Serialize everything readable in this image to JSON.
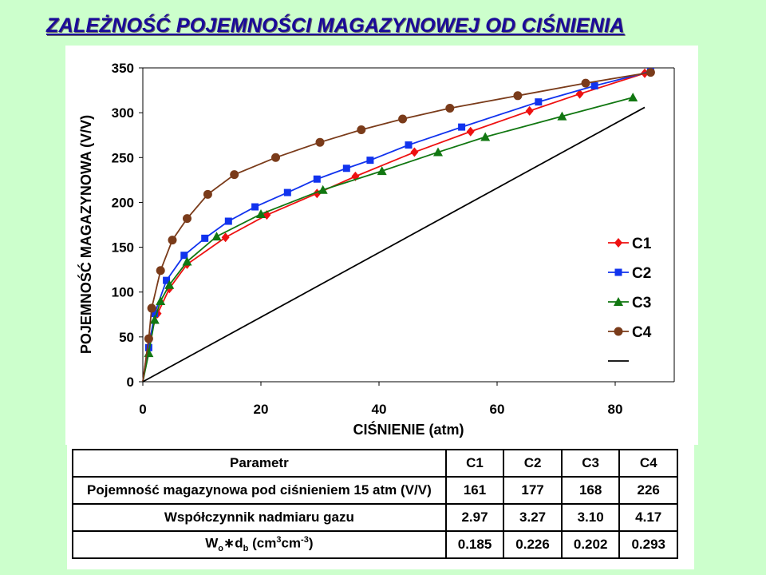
{
  "title": "ZALEŻNOŚĆ POJEMNOŚCI MAGAZYNOWEJ OD CIŚNIENIA",
  "chart_data": {
    "type": "line",
    "xlabel": "CIŚNIENIE (atm)",
    "ylabel": "POJEMNOŚĆ MAGAZYNOWA (V/V)",
    "xlim": [
      0,
      90
    ],
    "ylim": [
      0,
      350
    ],
    "xticks": [
      "0",
      "20",
      "40",
      "60",
      "80"
    ],
    "yticks": [
      "0",
      "50",
      "100",
      "150",
      "200",
      "250",
      "300",
      "350"
    ],
    "grid": false,
    "legend_position": "right",
    "series": [
      {
        "name": "C1",
        "color": "#ee1111",
        "marker": "diamond",
        "x": [
          0,
          1,
          2.5,
          4.5,
          7.5,
          14,
          21,
          29.5,
          36,
          46,
          55.5,
          65.5,
          74,
          85
        ],
        "y": [
          0,
          47,
          76,
          104,
          131,
          161,
          186,
          210,
          229,
          256,
          279,
          302,
          321,
          344
        ]
      },
      {
        "name": "C2",
        "color": "#1133ee",
        "marker": "square",
        "x": [
          0,
          1,
          2,
          4,
          7,
          10.5,
          14.5,
          19,
          24.5,
          29.5,
          34.5,
          38.5,
          45,
          54,
          67,
          76.5,
          86
        ],
        "y": [
          0,
          38,
          76,
          113,
          141,
          160,
          179,
          195,
          211,
          226,
          238,
          247,
          264,
          284,
          312,
          330,
          346
        ]
      },
      {
        "name": "C3",
        "color": "#117711",
        "marker": "triangle",
        "x": [
          0,
          1,
          2,
          3,
          4.5,
          7.5,
          12.5,
          20,
          30.5,
          40.5,
          50,
          58,
          71,
          83
        ],
        "y": [
          0,
          32,
          69,
          90,
          108,
          134,
          162,
          187,
          214,
          235,
          256,
          273,
          296,
          317
        ]
      },
      {
        "name": "C4",
        "color": "#7a3b1a",
        "marker": "circle",
        "x": [
          0,
          1,
          1.5,
          3,
          5,
          7.5,
          11,
          15.5,
          22.5,
          30,
          37,
          44,
          52,
          63.5,
          75,
          86
        ],
        "y": [
          0,
          48,
          82,
          124,
          158,
          182,
          209,
          231,
          250,
          267,
          281,
          293,
          305,
          319,
          333,
          345
        ]
      },
      {
        "name": "",
        "color": "#000000",
        "marker": "none",
        "x": [
          0,
          85
        ],
        "y": [
          0,
          306
        ]
      }
    ]
  },
  "table": {
    "header": [
      "Parametr",
      "C1",
      "C2",
      "C3",
      "C4"
    ],
    "rows": [
      {
        "label": "Pojemność magazynowa pod ciśnieniem 15 atm (V/V)",
        "values": [
          "161",
          "177",
          "168",
          "226"
        ]
      },
      {
        "label": "Współczynnik nadmiaru gazu",
        "values": [
          "2.97",
          "3.27",
          "3.10",
          "4.17"
        ]
      },
      {
        "label_parts": {
          "w": "W",
          "o": "o",
          "star": "∗",
          "d": "d",
          "b": "b",
          "open": " (cm",
          "e3": "3",
          "cm": "cm",
          "em3": "-3",
          "close": ")"
        },
        "values": [
          "0.185",
          "0.226",
          "0.202",
          "0.293"
        ]
      }
    ]
  }
}
